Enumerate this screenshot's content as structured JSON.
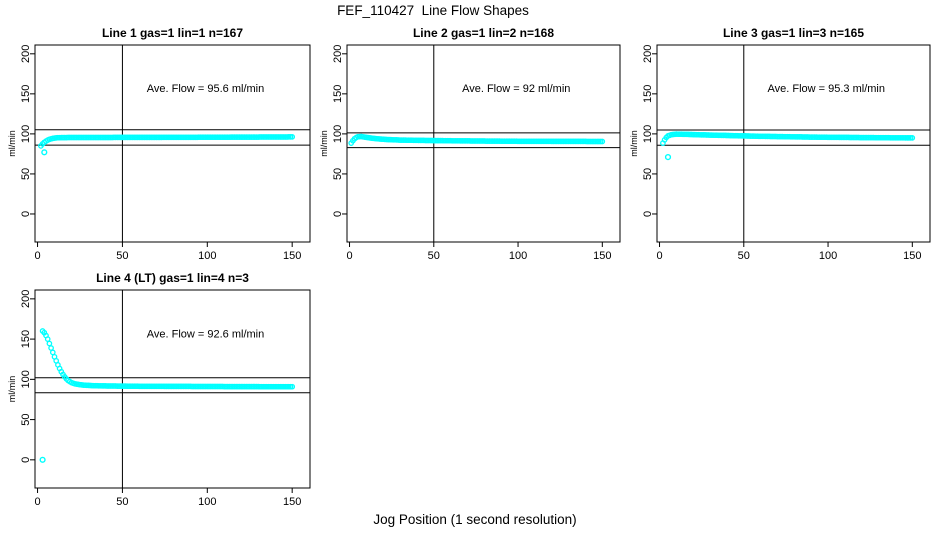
{
  "figure": {
    "title": "FEF_110427  Line Flow Shapes",
    "x_axis_label": "Jog Position (1 second resolution)",
    "y_axis_label": "ml/min",
    "marker_color": "#00ffff",
    "line_color": "#000000",
    "background": "#ffffff"
  },
  "chart_data": {
    "type": "scatter",
    "title": "FEF_110427  Line Flow Shapes",
    "xlabel": "Jog Position (1 second resolution)",
    "ylabel": "ml/min",
    "x_ticks": [
      0,
      50,
      100,
      150
    ],
    "y_ticks": [
      0,
      50,
      100,
      150,
      200
    ],
    "xlim": [
      -1.5,
      160.5
    ],
    "ylim": [
      -35,
      211
    ],
    "x_step": 1,
    "grid": false,
    "marker": "open-circle",
    "panels": [
      {
        "title": "Line 1 gas=1 lin=1 n=167",
        "n": 167,
        "ave_flow": 95.6,
        "ave_flow_label": "Ave. Flow =  95.6  ml/min",
        "ref_h": [
          105.2,
          86.0
        ],
        "ref_v": 50,
        "outliers": [
          [
            4,
            77
          ]
        ],
        "anchors": [
          [
            2,
            85
          ],
          [
            3,
            87.5
          ],
          [
            4,
            89.5
          ],
          [
            5,
            91
          ],
          [
            6,
            92.3
          ],
          [
            7,
            93.2
          ],
          [
            8,
            93.9
          ],
          [
            10,
            94.8
          ],
          [
            12,
            95.2
          ],
          [
            15,
            95.4
          ],
          [
            25,
            95.5
          ],
          [
            60,
            95.6
          ],
          [
            110,
            95.9
          ],
          [
            150,
            96.2
          ]
        ]
      },
      {
        "title": "Line 2 gas=1 lin=2 n=168",
        "n": 168,
        "ave_flow": 92,
        "ave_flow_label": "Ave. Flow =  92  ml/min",
        "ref_h": [
          101.2,
          82.8
        ],
        "ref_v": 50,
        "outliers": [],
        "anchors": [
          [
            1,
            88.5
          ],
          [
            2,
            91.5
          ],
          [
            3,
            94
          ],
          [
            4,
            95.5
          ],
          [
            5,
            96.5
          ],
          [
            7,
            96.8
          ],
          [
            9,
            96
          ],
          [
            12,
            95
          ],
          [
            16,
            94
          ],
          [
            22,
            93
          ],
          [
            30,
            92.3
          ],
          [
            45,
            91.8
          ],
          [
            70,
            91.2
          ],
          [
            100,
            90.8
          ],
          [
            150,
            90.5
          ]
        ]
      },
      {
        "title": "Line 3 gas=1 lin=3 n=165",
        "n": 165,
        "ave_flow": 95.3,
        "ave_flow_label": "Ave. Flow =  95.3  ml/min",
        "ref_h": [
          104.8,
          85.8
        ],
        "ref_v": 50,
        "outliers": [
          [
            5,
            71
          ]
        ],
        "anchors": [
          [
            2,
            88.5
          ],
          [
            3,
            92.5
          ],
          [
            4,
            95.5
          ],
          [
            5,
            97.5
          ],
          [
            7,
            99
          ],
          [
            10,
            99.7
          ],
          [
            15,
            99.5
          ],
          [
            25,
            98.8
          ],
          [
            40,
            98
          ],
          [
            60,
            97
          ],
          [
            90,
            96
          ],
          [
            120,
            95.4
          ],
          [
            150,
            95
          ]
        ]
      },
      {
        "title": "Line 4 (LT) gas=1 lin=4 n=3",
        "n": 3,
        "ave_flow": 92.6,
        "ave_flow_label": "Ave. Flow =  92.6  ml/min",
        "ref_h": [
          101.9,
          83.3
        ],
        "ref_v": 50,
        "outliers": [
          [
            3,
            0
          ]
        ],
        "anchors": [
          [
            3,
            160
          ],
          [
            4,
            158
          ],
          [
            5,
            154.5
          ],
          [
            6,
            150
          ],
          [
            7,
            144.5
          ],
          [
            8,
            139
          ],
          [
            9,
            133.5
          ],
          [
            10,
            128
          ],
          [
            11,
            123
          ],
          [
            12,
            118
          ],
          [
            13,
            113.5
          ],
          [
            14,
            109.5
          ],
          [
            15,
            106
          ],
          [
            16,
            103
          ],
          [
            17,
            100.5
          ],
          [
            18,
            98.5
          ],
          [
            20,
            96
          ],
          [
            22,
            94.5
          ],
          [
            25,
            93.3
          ],
          [
            28,
            92.7
          ],
          [
            32,
            92.2
          ],
          [
            40,
            91.8
          ],
          [
            60,
            91.4
          ],
          [
            100,
            91.1
          ],
          [
            150,
            90.8
          ]
        ]
      }
    ]
  }
}
